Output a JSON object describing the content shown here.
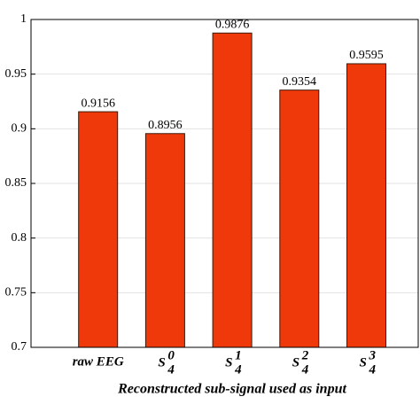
{
  "chart_data": {
    "type": "bar",
    "x_label": "Reconstructed sub-signal used as input",
    "categories": [
      "raw EEG",
      {
        "base": "S",
        "sub": "4",
        "sup": "0"
      },
      {
        "base": "S",
        "sub": "4",
        "sup": "1"
      },
      {
        "base": "S",
        "sub": "4",
        "sup": "2"
      },
      {
        "base": "S",
        "sub": "4",
        "sup": "3"
      }
    ],
    "values": [
      0.9156,
      0.8956,
      0.9876,
      0.9354,
      0.9595
    ],
    "color": "#f0390a",
    "ylim": [
      0.7,
      1
    ],
    "yticks": [
      0.7,
      0.75,
      0.8,
      0.85,
      0.9,
      0.95,
      1
    ],
    "grid": true
  }
}
